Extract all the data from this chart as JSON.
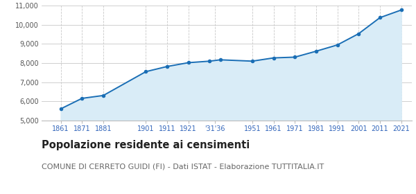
{
  "years": [
    1861,
    1871,
    1881,
    1901,
    1911,
    1921,
    1931,
    1936,
    1951,
    1961,
    1971,
    1981,
    1991,
    2001,
    2011,
    2021
  ],
  "population": [
    5600,
    6150,
    6300,
    7550,
    7820,
    8020,
    8100,
    8170,
    8100,
    8270,
    8310,
    8620,
    8950,
    9540,
    10380,
    10780
  ],
  "x_tick_labels": [
    "1861",
    "1871",
    "1881",
    "1901",
    "1911",
    "1921",
    "'31'36",
    "1951",
    "1961",
    "1971",
    "1981",
    "1991",
    "2001",
    "2011",
    "2021"
  ],
  "x_tick_positions": [
    1861,
    1871,
    1881,
    1901,
    1911,
    1921,
    1933.5,
    1951,
    1961,
    1971,
    1981,
    1991,
    2001,
    2011,
    2021
  ],
  "ylim": [
    5000,
    11000
  ],
  "yticks": [
    5000,
    6000,
    7000,
    8000,
    9000,
    10000,
    11000
  ],
  "ytick_labels": [
    "5,000",
    "6,000",
    "7,000",
    "8,000",
    "9,000",
    "10,000",
    "11,000"
  ],
  "line_color": "#1a6eb5",
  "fill_color": "#d9ecf7",
  "marker_color": "#1a6eb5",
  "title": "Popolazione residente ai censimenti",
  "subtitle": "COMUNE DI CERRETO GUIDI (FI) - Dati ISTAT - Elaborazione TUTTITALIA.IT",
  "title_fontsize": 10.5,
  "subtitle_fontsize": 8,
  "grid_color": "#c8c8c8",
  "bg_color": "#ffffff",
  "xlim_left": 1852,
  "xlim_right": 2026
}
